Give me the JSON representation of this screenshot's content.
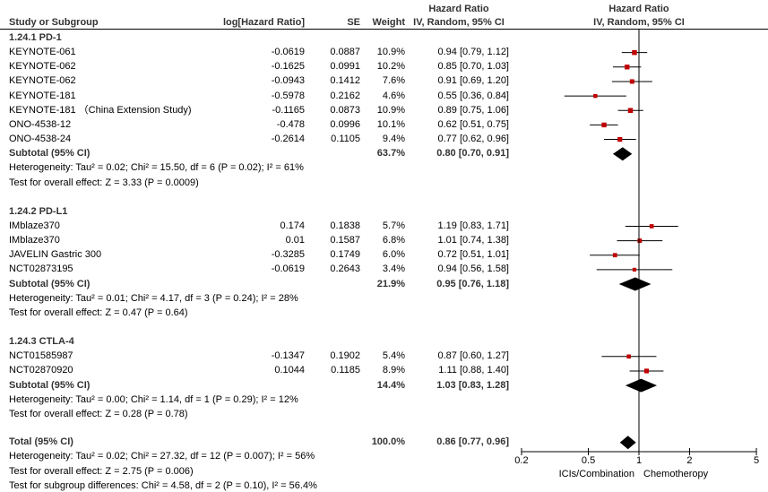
{
  "chart_data": {
    "type": "forest",
    "title": "",
    "columns": {
      "study": "Study or Subgroup",
      "loghr": "log[Hazard Ratio]",
      "se": "SE",
      "weight": "Weight",
      "hr_line1": "Hazard Ratio",
      "hr_line2": "IV, Random, 95% CI",
      "plot_line1": "Hazard Ratio",
      "plot_line2": "IV, Random, 95% CI"
    },
    "xaxis": {
      "scale": "log",
      "ticks": [
        0.2,
        0.5,
        1,
        2,
        5
      ],
      "tick_labels": [
        "0.2",
        "0.5",
        "1",
        "2",
        "5"
      ],
      "range": [
        0.2,
        5
      ],
      "left_label": "ICIs/Combination",
      "right_label": "Chemotheropy"
    },
    "subgroups": [
      {
        "name": "1.24.1 PD-1",
        "studies": [
          {
            "name": "KEYNOTE-061",
            "loghr": "-0.0619",
            "se": "0.0887",
            "weight": "10.9%",
            "hr": 0.94,
            "lo": 0.79,
            "hi": 1.12,
            "ci_text": "0.94 [0.79, 1.12]"
          },
          {
            "name": "KEYNOTE-062",
            "loghr": "-0.1625",
            "se": "0.0991",
            "weight": "10.2%",
            "hr": 0.85,
            "lo": 0.7,
            "hi": 1.03,
            "ci_text": "0.85 [0.70, 1.03]"
          },
          {
            "name": "KEYNOTE-062",
            "loghr": "-0.0943",
            "se": "0.1412",
            "weight": "7.6%",
            "hr": 0.91,
            "lo": 0.69,
            "hi": 1.2,
            "ci_text": "0.91 [0.69, 1.20]"
          },
          {
            "name": "KEYNOTE-181",
            "loghr": "-0.5978",
            "se": "0.2162",
            "weight": "4.6%",
            "hr": 0.55,
            "lo": 0.36,
            "hi": 0.84,
            "ci_text": "0.55 [0.36, 0.84]"
          },
          {
            "name": "KEYNOTE-181 （China Extension Study)",
            "loghr": "-0.1165",
            "se": "0.0873",
            "weight": "10.9%",
            "hr": 0.89,
            "lo": 0.75,
            "hi": 1.06,
            "ci_text": "0.89 [0.75, 1.06]"
          },
          {
            "name": "ONO-4538-12",
            "loghr": "-0.478",
            "se": "0.0996",
            "weight": "10.1%",
            "hr": 0.62,
            "lo": 0.51,
            "hi": 0.75,
            "ci_text": "0.62 [0.51, 0.75]"
          },
          {
            "name": "ONO-4538-24",
            "loghr": "-0.2614",
            "se": "0.1105",
            "weight": "9.4%",
            "hr": 0.77,
            "lo": 0.62,
            "hi": 0.96,
            "ci_text": "0.77 [0.62, 0.96]"
          }
        ],
        "subtotal": {
          "label": "Subtotal (95% CI)",
          "weight": "63.7%",
          "hr": 0.8,
          "lo": 0.7,
          "hi": 0.91,
          "ci_text": "0.80 [0.70, 0.91]"
        },
        "heterogeneity": "Heterogeneity: Tau² = 0.02; Chi² = 15.50, df = 6 (P = 0.02); I² = 61%",
        "overall_effect": "Test for overall effect: Z = 3.33 (P = 0.0009)"
      },
      {
        "name": "1.24.2 PD-L1",
        "studies": [
          {
            "name": "IMblaze370",
            "loghr": "0.174",
            "se": "0.1838",
            "weight": "5.7%",
            "hr": 1.19,
            "lo": 0.83,
            "hi": 1.71,
            "ci_text": "1.19 [0.83, 1.71]"
          },
          {
            "name": "IMblaze370",
            "loghr": "0.01",
            "se": "0.1587",
            "weight": "6.8%",
            "hr": 1.01,
            "lo": 0.74,
            "hi": 1.38,
            "ci_text": "1.01 [0.74, 1.38]"
          },
          {
            "name": "JAVELIN Gastric 300",
            "loghr": "-0.3285",
            "se": "0.1749",
            "weight": "6.0%",
            "hr": 0.72,
            "lo": 0.51,
            "hi": 1.01,
            "ci_text": "0.72 [0.51, 1.01]"
          },
          {
            "name": "NCT02873195",
            "loghr": "-0.0619",
            "se": "0.2643",
            "weight": "3.4%",
            "hr": 0.94,
            "lo": 0.56,
            "hi": 1.58,
            "ci_text": "0.94 [0.56, 1.58]"
          }
        ],
        "subtotal": {
          "label": "Subtotal (95% CI)",
          "weight": "21.9%",
          "hr": 0.95,
          "lo": 0.76,
          "hi": 1.18,
          "ci_text": "0.95 [0.76, 1.18]"
        },
        "heterogeneity": "Heterogeneity: Tau² = 0.01; Chi² = 4.17, df = 3 (P = 0.24); I² = 28%",
        "overall_effect": "Test for overall effect: Z = 0.47 (P = 0.64)"
      },
      {
        "name": "1.24.3 CTLA-4",
        "studies": [
          {
            "name": "NCT01585987",
            "loghr": "-0.1347",
            "se": "0.1902",
            "weight": "5.4%",
            "hr": 0.87,
            "lo": 0.6,
            "hi": 1.27,
            "ci_text": "0.87 [0.60, 1.27]"
          },
          {
            "name": "NCT02870920",
            "loghr": "0.1044",
            "se": "0.1185",
            "weight": "8.9%",
            "hr": 1.11,
            "lo": 0.88,
            "hi": 1.4,
            "ci_text": "1.11 [0.88, 1.40]"
          }
        ],
        "subtotal": {
          "label": "Subtotal (95% CI)",
          "weight": "14.4%",
          "hr": 1.03,
          "lo": 0.83,
          "hi": 1.28,
          "ci_text": "1.03 [0.83, 1.28]"
        },
        "heterogeneity": "Heterogeneity: Tau² = 0.00; Chi² = 1.14, df = 1 (P = 0.29); I² = 12%",
        "overall_effect": "Test for overall effect: Z = 0.28 (P = 0.78)"
      }
    ],
    "total": {
      "label": "Total (95% CI)",
      "weight": "100.0%",
      "hr": 0.86,
      "lo": 0.77,
      "hi": 0.96,
      "ci_text": "0.86 [0.77, 0.96]",
      "heterogeneity": "Heterogeneity: Tau² = 0.02; Chi² = 27.32, df = 12 (P = 0.007); I² = 56%",
      "overall_effect": "Test for overall effect: Z = 2.75 (P = 0.006)",
      "subgroup_differences": "Test for subgroup differences: Chi² = 4.58, df = 2 (P = 0.10), I² = 56.4%"
    },
    "colors": {
      "point": "#c00000",
      "diamond": "#000000",
      "line": "#000000",
      "header_text": "#333333"
    }
  }
}
